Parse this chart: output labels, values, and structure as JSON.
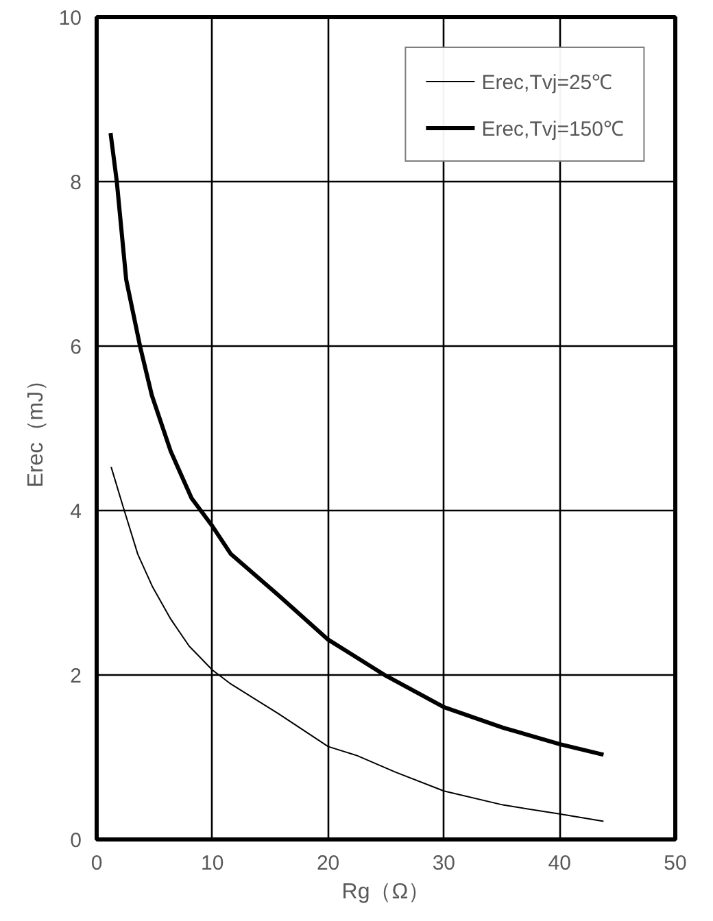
{
  "chart_data": {
    "type": "line",
    "xlabel": "Rg（Ω）",
    "ylabel": "Erec（mJ）",
    "xlim": [
      0,
      50
    ],
    "xticks": [
      0,
      10,
      20,
      30,
      40,
      50
    ],
    "ylim": [
      0,
      10
    ],
    "yticks": [
      0,
      2,
      4,
      6,
      8,
      10
    ],
    "grid": true,
    "legend": "top right",
    "marker": "none",
    "line_style": "solid",
    "series": [
      {
        "name": "Erec,Tvj=25℃",
        "color": "#000000",
        "x": [
          1.25,
          2.3,
          3.55,
          4.8,
          6.4,
          8.0,
          10.0,
          11.6,
          15.7,
          20.0,
          22.5,
          25.8,
          30.0,
          35.1,
          40.0,
          43.8
        ],
        "values": [
          4.53,
          4.04,
          3.47,
          3.08,
          2.68,
          2.35,
          2.06,
          1.89,
          1.53,
          1.13,
          1.02,
          0.82,
          0.59,
          0.42,
          0.31,
          0.22
        ]
      },
      {
        "name": "Erec,Tvj=150℃",
        "color": "#000000",
        "x": [
          1.2,
          1.74,
          2.55,
          3.76,
          4.77,
          6.4,
          8.2,
          10.0,
          11.6,
          15.7,
          20.0,
          25.0,
          30.0,
          35.1,
          40.0,
          43.8
        ],
        "values": [
          8.59,
          8.0,
          6.81,
          5.99,
          5.4,
          4.72,
          4.15,
          3.81,
          3.47,
          2.97,
          2.43,
          1.99,
          1.61,
          1.36,
          1.16,
          1.03
        ]
      }
    ]
  }
}
